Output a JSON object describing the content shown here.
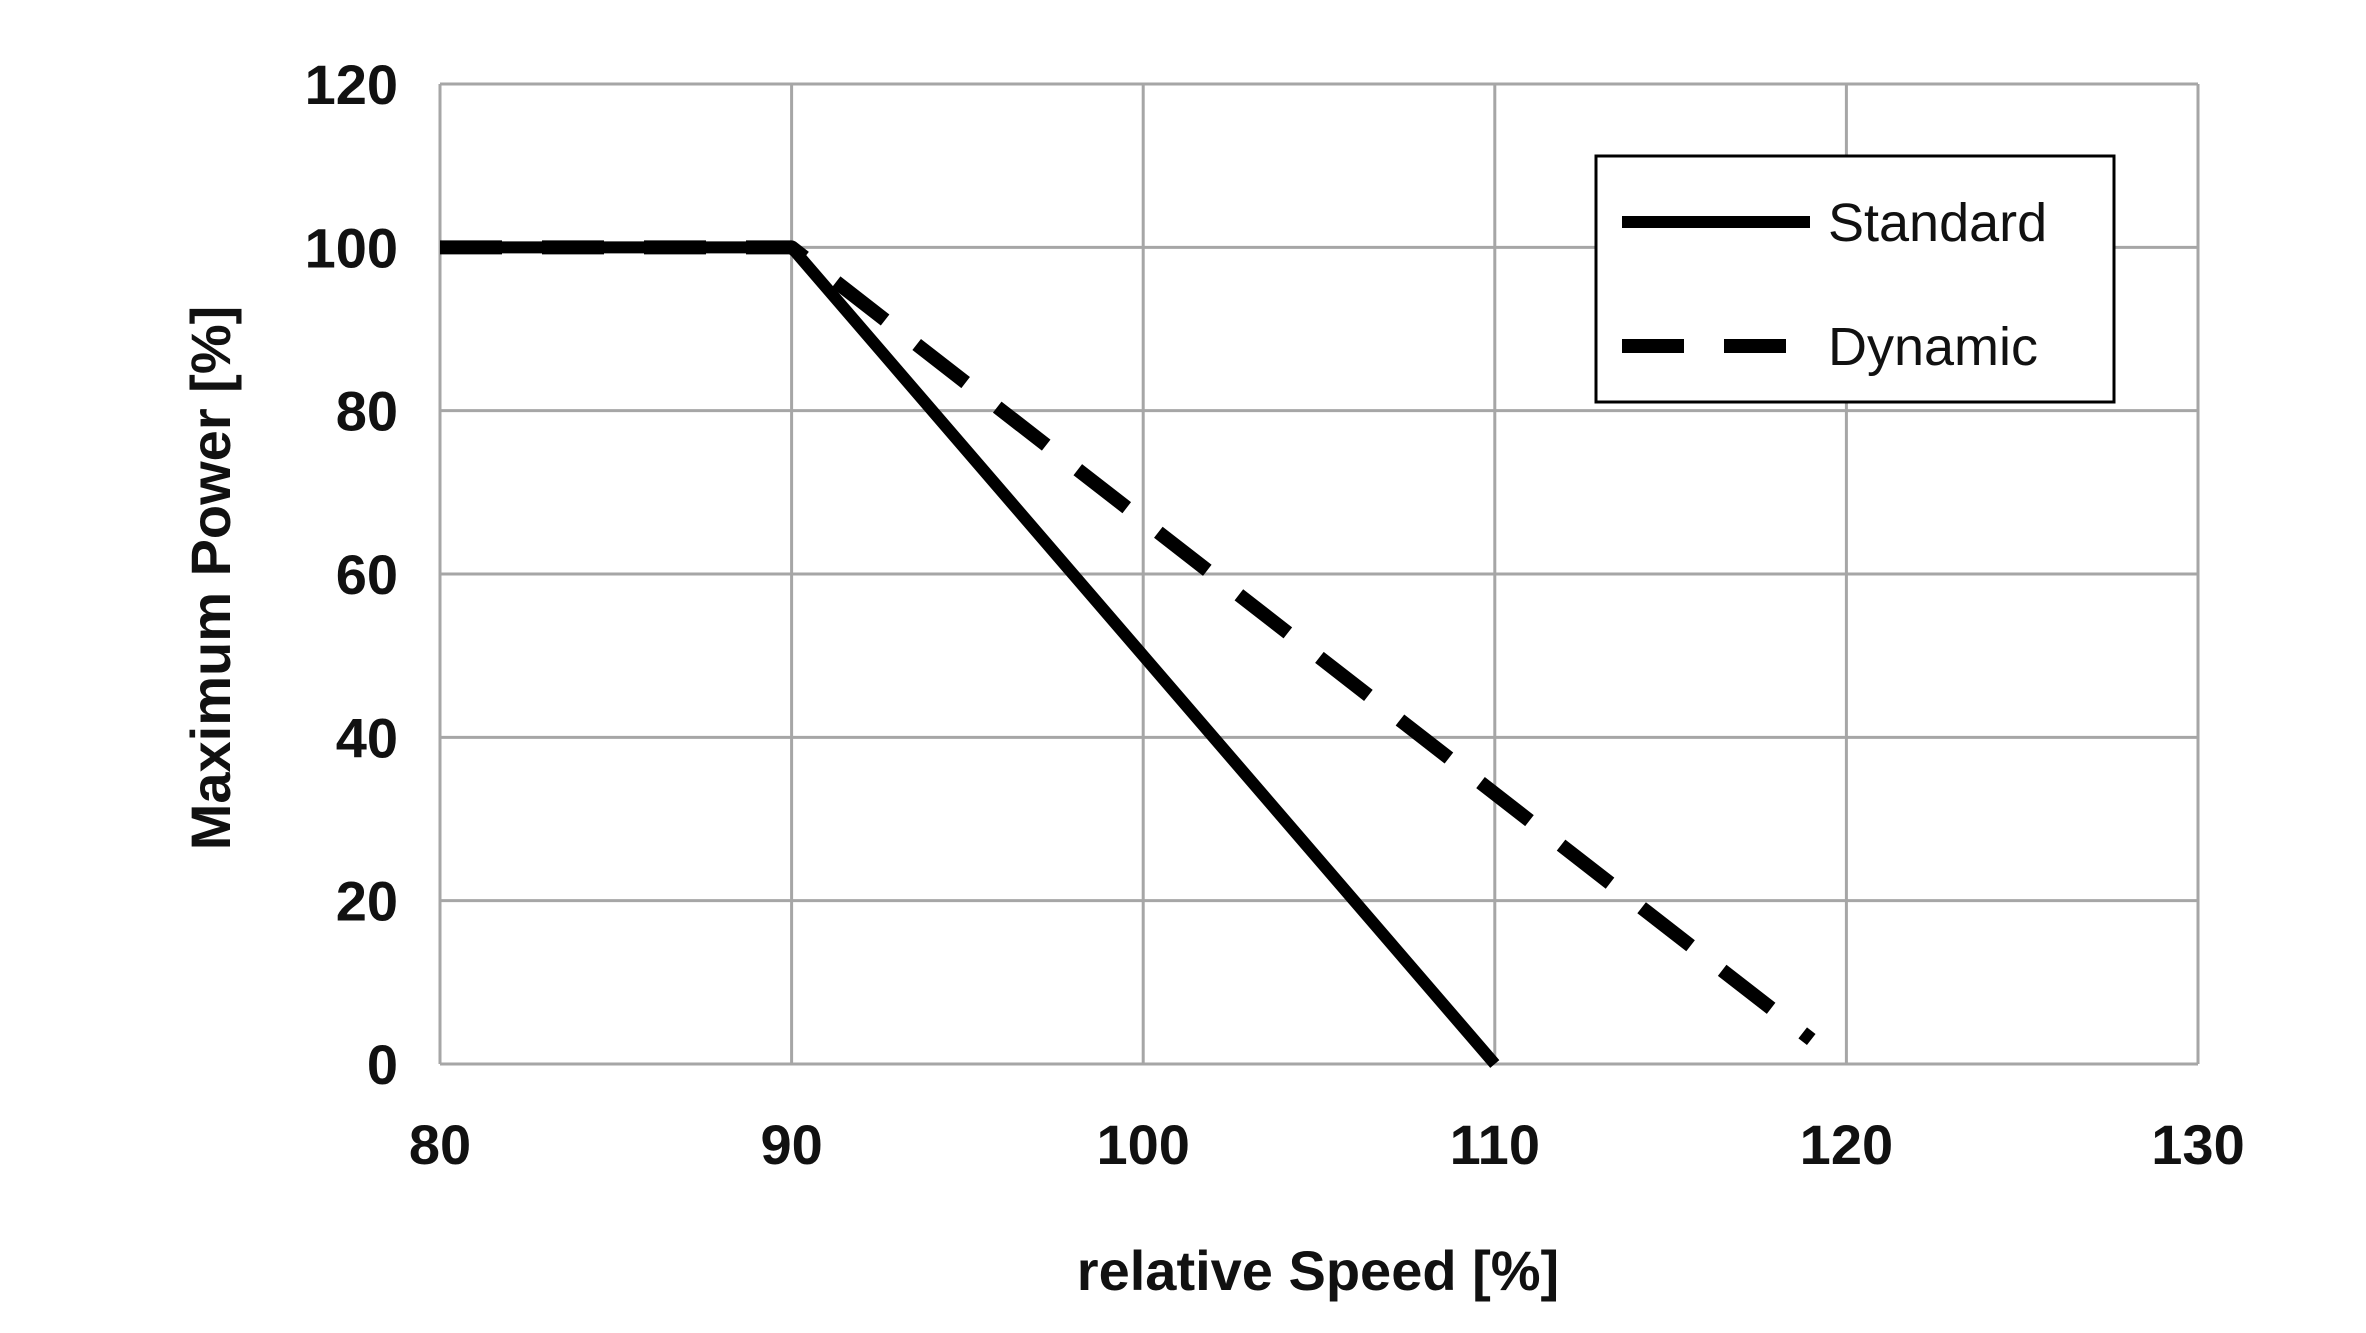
{
  "chart_data": {
    "type": "line",
    "title": "",
    "xlabel": "relative Speed [%]",
    "ylabel": "Maximum Power [%]",
    "xlim": [
      80,
      130
    ],
    "ylim": [
      0,
      120
    ],
    "xticks": [
      80,
      90,
      100,
      110,
      120,
      130
    ],
    "yticks": [
      0,
      20,
      40,
      60,
      80,
      100,
      120
    ],
    "x_tick_labels": [
      "80",
      "90",
      "100",
      "110",
      "120",
      "130"
    ],
    "y_tick_labels": [
      "0",
      "20",
      "40",
      "60",
      "80",
      "100",
      "120"
    ],
    "grid": true,
    "legend_position": "top-right",
    "series": [
      {
        "name": "Standard",
        "style": "solid",
        "color": "#000000",
        "x": [
          80,
          90,
          110
        ],
        "y": [
          100,
          100,
          0
        ]
      },
      {
        "name": "Dynamic",
        "style": "dashed",
        "color": "#000000",
        "x": [
          80,
          90,
          119
        ],
        "y": [
          100,
          100,
          3
        ]
      }
    ]
  }
}
